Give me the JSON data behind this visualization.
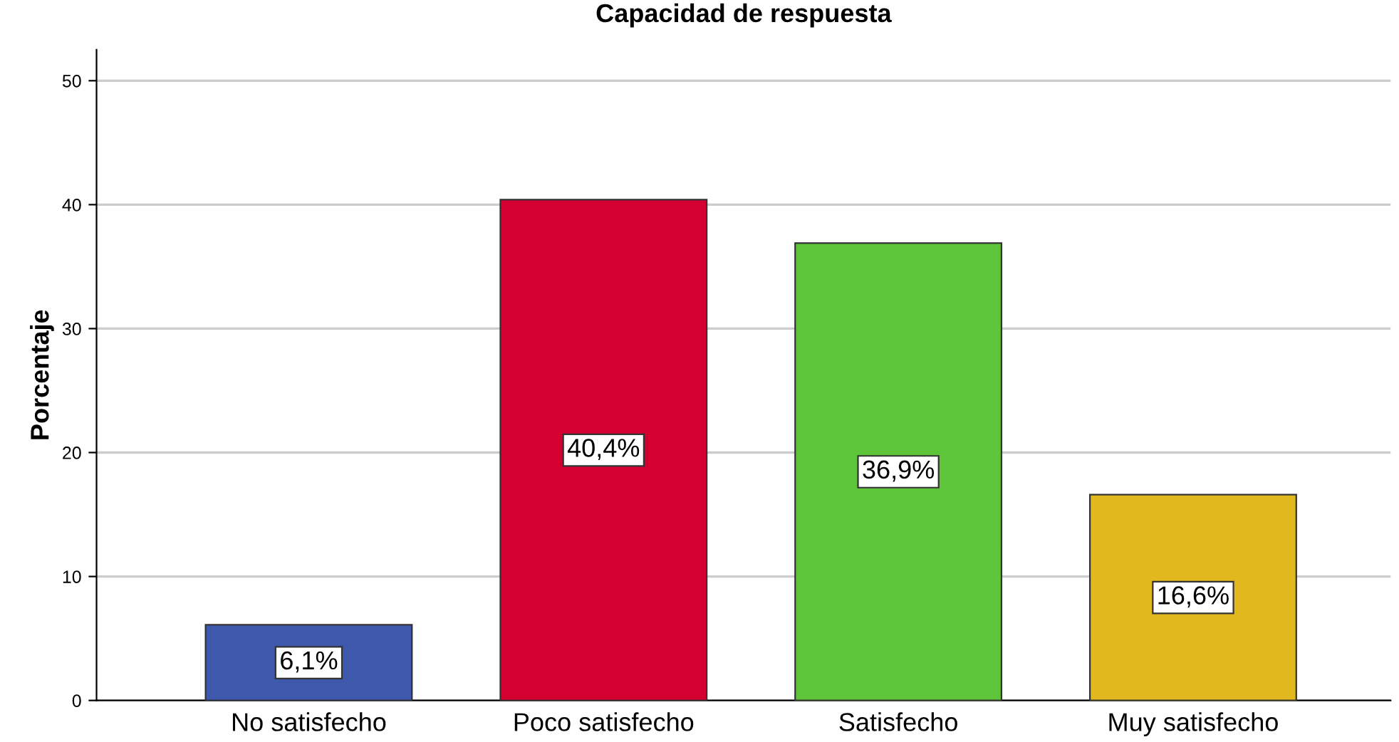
{
  "chart_data": {
    "type": "bar",
    "title": "Capacidad de respuesta",
    "ylabel": "Porcentaje",
    "categories": [
      "No satisfecho",
      "Poco satisfecho",
      "Satisfecho",
      "Muy satisfecho"
    ],
    "values": [
      6.1,
      40.4,
      36.9,
      16.6
    ],
    "colors": [
      "#3e58ac",
      "#d50032",
      "#5ec43a",
      "#e1b91e"
    ],
    "value_labels": [
      "6,1%",
      "40,4%",
      "36,9%",
      "16,6%"
    ],
    "ylim": [
      0,
      52.5
    ],
    "yticks": [
      0,
      10,
      20,
      30,
      40,
      50
    ],
    "grid": "y",
    "legend": false
  }
}
